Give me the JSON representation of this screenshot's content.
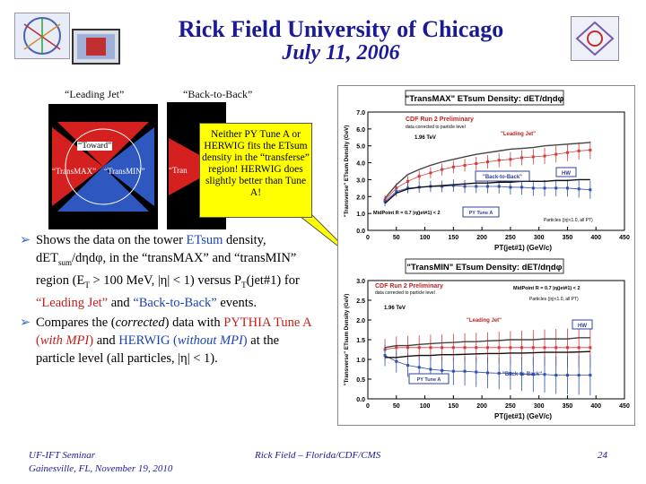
{
  "header": {
    "title": "Rick Field University of Chicago",
    "date": "July 11, 2006"
  },
  "captions": {
    "leading_jet": "“Leading Jet”",
    "back_to_back": "“Back-to-Back”"
  },
  "diagram_left": {
    "toward": "“Toward”",
    "trans_max": "“TransMAX”",
    "trans_min": "“TransMIN”"
  },
  "diagram_right": {
    "partial": "“Tran"
  },
  "callout": {
    "text": "Neither PY Tune A or HERWIG fits the ETsum density in the “transferse” region! HERWIG does slightly better than Tune A!"
  },
  "bullets": {
    "b1": {
      "p1": "Shows the data on the tower ",
      "etsum": "ETsum",
      "p2": " density, dET",
      "sub": "sum",
      "p3": "/dηdφ, in the “transMAX” and “transMIN” region (E",
      "sub2": "T",
      "p4": " > 100 MeV, |η| < 1) versus P",
      "sub3": "T",
      "p5": "(jet#1) for ",
      "lj": "“Leading Jet”",
      "p6": " and ",
      "btb": "“Back-to-Back”",
      "p7": " events."
    },
    "b2": {
      "p1": "Compares the (",
      "corrected": "corrected",
      "p2": ") data with ",
      "pythia": "PYTHIA Tune A (",
      "withmpi": "with MPI",
      "pythia_end": ")",
      "p3": " and ",
      "herwig": "HERWIG (",
      "withoutmpi": "without MPI",
      "herwig_end": ")",
      "p4": " at the particle level (all particles, |η| < 1)."
    }
  },
  "footer": {
    "left1": "UF-IFT Seminar",
    "left2": "Gainesville, FL,  November 19, 2010",
    "center": "Rick Field – Florida/CDF/CMS",
    "page": "24"
  },
  "chart_data": [
    {
      "type": "line",
      "title": "\"TransMAX\" ETsum Density: dET/dηdφ",
      "xlabel": "PT(jet#1)  (GeV/c)",
      "ylabel": "\"Transverse\" ETsum Density (GeV)",
      "xlim": [
        0,
        450
      ],
      "ylim": [
        0,
        7
      ],
      "xticks": [
        "0",
        "50",
        "100",
        "150",
        "200",
        "250",
        "300",
        "350",
        "400",
        "450"
      ],
      "yticks": [
        "0.0",
        "1.0",
        "2.0",
        "3.0",
        "4.0",
        "5.0",
        "6.0",
        "7.0"
      ],
      "annotations": {
        "prelim": "CDF Run 2 Preliminary",
        "corrected": "data corrected to particle level",
        "tev": "1.96 TeV",
        "leading": "\"Leading Jet\"",
        "btb": "\"Back-to-Back\"",
        "hw": "HW",
        "midpoint": "MidPoint R = 0.7 |η(jet#1) < 2",
        "tune": "PY Tune A",
        "particles": "Particles (|η|<1.0, all PT)"
      },
      "x": [
        30,
        50,
        70,
        90,
        110,
        130,
        150,
        170,
        190,
        210,
        230,
        250,
        270,
        290,
        310,
        330,
        350,
        370,
        390
      ],
      "series": [
        {
          "name": "\"Leading Jet\"",
          "color": "#d43a3a",
          "values": [
            1.8,
            2.5,
            2.9,
            3.2,
            3.4,
            3.6,
            3.75,
            3.85,
            3.95,
            4.05,
            4.15,
            4.2,
            4.3,
            4.35,
            4.4,
            4.5,
            4.6,
            4.7,
            4.75
          ]
        },
        {
          "name": "\"Back-to-Back\"",
          "color": "#2e4fb0",
          "values": [
            1.7,
            2.3,
            2.5,
            2.55,
            2.6,
            2.6,
            2.65,
            2.6,
            2.6,
            2.6,
            2.6,
            2.55,
            2.55,
            2.5,
            2.5,
            2.5,
            2.5,
            2.45,
            2.4
          ]
        },
        {
          "name": "HW",
          "color": "#444444",
          "values": [
            1.9,
            2.7,
            3.3,
            3.6,
            3.85,
            4.05,
            4.2,
            4.35,
            4.5,
            4.6,
            4.7,
            4.8,
            4.85,
            4.9,
            5.0,
            5.05,
            5.1,
            5.15,
            5.2
          ]
        },
        {
          "name": "PY Tune A",
          "color": "#111111",
          "values": [
            1.6,
            2.2,
            2.45,
            2.55,
            2.6,
            2.65,
            2.7,
            2.75,
            2.8,
            2.8,
            2.85,
            2.85,
            2.9,
            2.9,
            2.9,
            2.95,
            2.95,
            3.0,
            3.0
          ]
        }
      ]
    },
    {
      "type": "line",
      "title": "\"TransMIN\" ETsum Density: dET/dηdφ",
      "xlabel": "PT(jet#1)  (GeV/c)",
      "ylabel": "\"Transverse\" ETsum Density (GeV)",
      "xlim": [
        0,
        450
      ],
      "ylim": [
        0,
        3
      ],
      "xticks": [
        "0",
        "50",
        "100",
        "150",
        "200",
        "250",
        "300",
        "350",
        "400",
        "450"
      ],
      "yticks": [
        "0.0",
        "0.5",
        "1.0",
        "1.5",
        "2.0",
        "2.5",
        "3.0"
      ],
      "annotations": {
        "prelim": "CDF Run 2 Preliminary",
        "corrected": "data corrected to particle level",
        "tev": "1.96 TeV",
        "leading": "\"Leading Jet\"",
        "btb": "\"Back-to-Back\"",
        "hw": "HW",
        "midpoint": "MidPoint R = 0.7 |η(jet#1) < 2",
        "tune": "PY Tune A",
        "particles": "Particles (|η|<1.0, all PT)"
      },
      "x": [
        30,
        50,
        70,
        90,
        110,
        130,
        150,
        170,
        190,
        210,
        230,
        250,
        270,
        290,
        310,
        330,
        350,
        370,
        390
      ],
      "series": [
        {
          "name": "\"Leading Jet\"",
          "color": "#d43a3a",
          "values": [
            1.25,
            1.3,
            1.3,
            1.3,
            1.3,
            1.3,
            1.3,
            1.3,
            1.3,
            1.3,
            1.3,
            1.3,
            1.3,
            1.3,
            1.3,
            1.3,
            1.3,
            1.3,
            1.3
          ]
        },
        {
          "name": "\"Back-to-Back\"",
          "color": "#2e4fb0",
          "values": [
            1.1,
            0.95,
            0.85,
            0.8,
            0.75,
            0.72,
            0.7,
            0.7,
            0.68,
            0.66,
            0.65,
            0.65,
            0.63,
            0.62,
            0.62,
            0.6,
            0.6,
            0.6,
            0.6
          ]
        },
        {
          "name": "HW",
          "color": "#444444",
          "values": [
            1.3,
            1.35,
            1.35,
            1.38,
            1.4,
            1.42,
            1.43,
            1.45,
            1.45,
            1.47,
            1.48,
            1.5,
            1.5,
            1.5,
            1.52,
            1.52,
            1.52,
            1.55,
            1.55
          ]
        },
        {
          "name": "PY Tune A",
          "color": "#111111",
          "values": [
            1.05,
            1.05,
            1.08,
            1.1,
            1.1,
            1.12,
            1.12,
            1.13,
            1.14,
            1.15,
            1.15,
            1.16,
            1.16,
            1.17,
            1.18,
            1.18,
            1.18,
            1.19,
            1.2
          ]
        }
      ]
    }
  ],
  "colors": {
    "title": "#1a1a99",
    "callout": "#ffff00",
    "accent_blue": "#1a44b0",
    "accent_red": "#c0201a"
  }
}
